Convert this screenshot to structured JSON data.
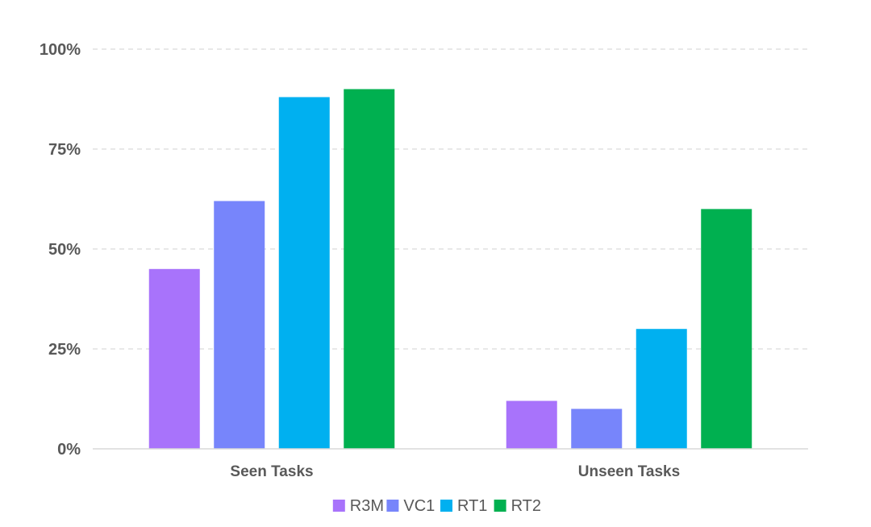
{
  "chart_data": {
    "type": "bar",
    "categories": [
      "Seen Tasks",
      "Unseen Tasks"
    ],
    "series": [
      {
        "name": "R3M",
        "color": "#a873fb",
        "values": [
          45,
          12
        ]
      },
      {
        "name": "VC1",
        "color": "#7785fb",
        "values": [
          62,
          10
        ]
      },
      {
        "name": "RT1",
        "color": "#00b0f0",
        "values": [
          88,
          30
        ]
      },
      {
        "name": "RT2",
        "color": "#00b050",
        "values": [
          90,
          60
        ]
      }
    ],
    "title": "",
    "xlabel": "",
    "ylabel": "",
    "ylim": [
      0,
      100
    ],
    "yticks": [
      0,
      25,
      50,
      75,
      100
    ],
    "ytick_labels": [
      "0%",
      "25%",
      "50%",
      "75%",
      "100%"
    ],
    "grid": true,
    "legend_position": "bottom"
  }
}
